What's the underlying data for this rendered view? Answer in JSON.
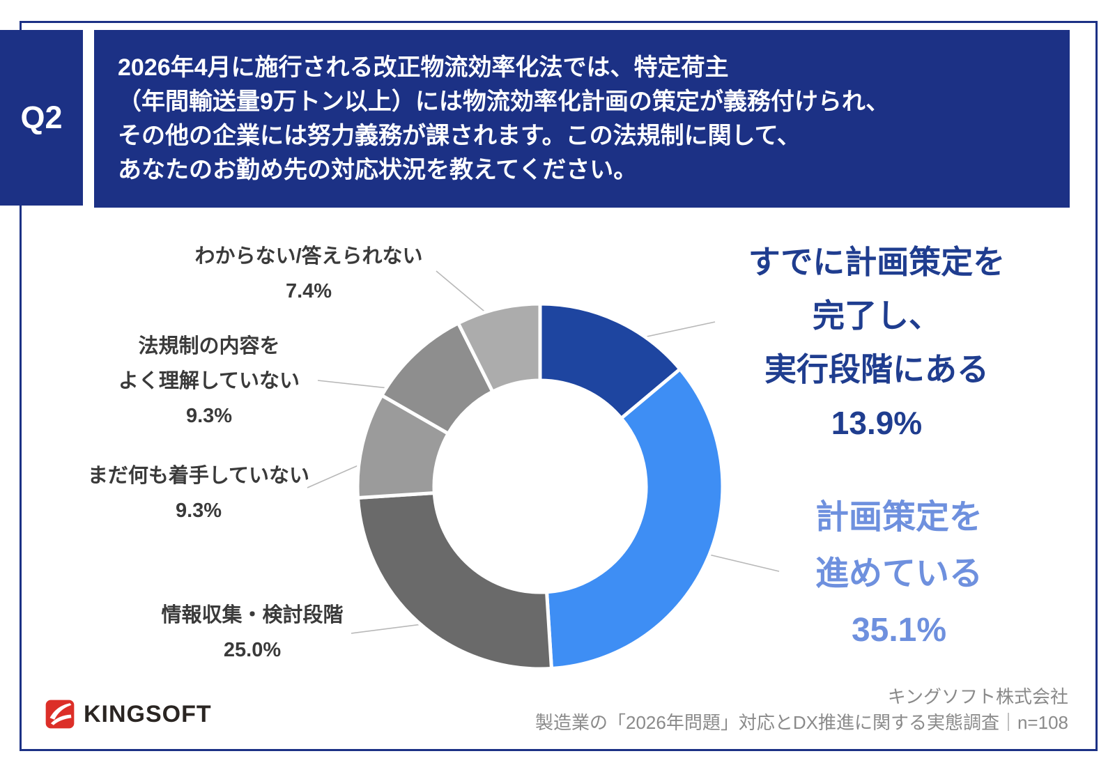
{
  "q_label": "Q2",
  "question": {
    "lines": [
      "2026年4月に施行される改正物流効率化法では、特定荷主",
      "（年間輸送量9万トン以上）には物流効率化計画の策定が義務付けられ、",
      "その他の企業には努力義務が課されます。この法規制に関して、",
      "あなたのお勤め先の対応状況を教えてください。"
    ]
  },
  "chart_data": {
    "type": "pie",
    "subtype": "donut",
    "unit": "%",
    "start_angle": "12-oclock",
    "direction": "clockwise",
    "segments": [
      {
        "label": "すでに計画策定を完了し、実行段階にある",
        "value": 13.9,
        "color": "#1E45A0"
      },
      {
        "label": "計画策定を進めている",
        "value": 35.1,
        "color": "#3E8EF4"
      },
      {
        "label": "情報収集・検討段階",
        "value": 25.0,
        "color": "#6A6A6A"
      },
      {
        "label": "まだ何も着手していない",
        "value": 9.3,
        "color": "#9B9B9B"
      },
      {
        "label": "法規制の内容をよく理解していない",
        "value": 9.3,
        "color": "#8E8E8E"
      },
      {
        "label": "わからない/答えられない",
        "value": 7.4,
        "color": "#ACACAC"
      }
    ]
  },
  "callouts": {
    "right1": {
      "lines": [
        "すでに計画策定を",
        "完了し、",
        "実行段階にある",
        "13.9%"
      ],
      "color": "#1F3D8F"
    },
    "right2": {
      "lines": [
        "計画策定を",
        "進めている",
        "35.1%"
      ],
      "color": "#6E90DE"
    },
    "left1": {
      "lines": [
        "わからない/答えられない",
        "7.4%"
      ]
    },
    "left2": {
      "lines": [
        "法規制の内容を",
        "よく理解していない",
        "9.3%"
      ]
    },
    "left3": {
      "lines": [
        "まだ何も着手していない",
        "9.3%"
      ]
    },
    "left4": {
      "lines": [
        "情報収集・検討段階",
        "25.0%"
      ]
    }
  },
  "footer": {
    "logo_text": "KINGSOFT",
    "source_line1": "キングソフト株式会社",
    "source_line2": "製造業の「2026年問題」対応とDX推進に関する実態調査｜n=108"
  },
  "colors": {
    "accent_navy": "#1C3185",
    "logo_red": "#DC2F28"
  }
}
